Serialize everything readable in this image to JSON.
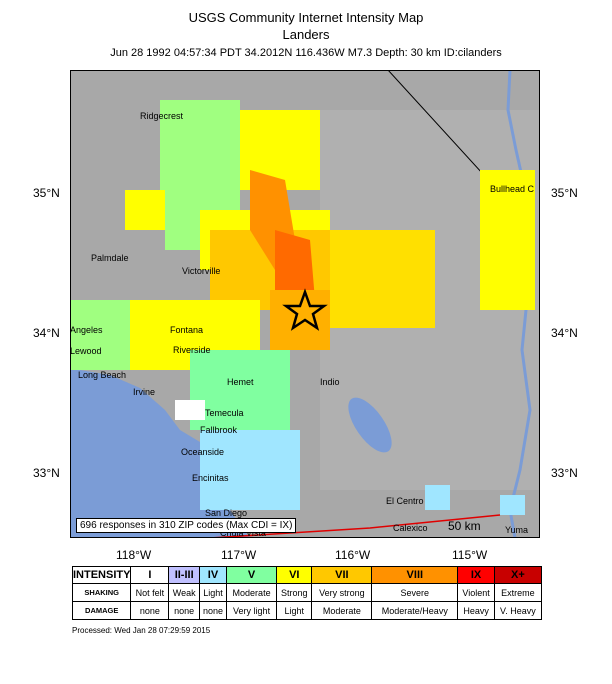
{
  "header": {
    "title": "USGS Community Internet Intensity Map",
    "event_name": "Landers",
    "event_info": "Jun 28 1992 04:57:34 PDT 34.2012N 116.436W M7.3 Depth: 30 km ID:cilanders"
  },
  "map": {
    "lat_labels": [
      "35°N",
      "34°N",
      "33°N"
    ],
    "lon_labels": [
      "118°W",
      "117°W",
      "116°W",
      "115°W"
    ],
    "cities": [
      "Ridgecrest",
      "Bullhead C",
      "Palmdale",
      "Victorville",
      "Angeles",
      "Fontana",
      "Riverside",
      "Lewood",
      "Long Beach",
      "Irvine",
      "Hemet",
      "Indio",
      "Temecula",
      "Fallbrook",
      "Oceanside",
      "Encinitas",
      "San Diego",
      "Chula Vista",
      "El Centro",
      "Calexico",
      "Yuma"
    ],
    "scale_label": "50 km",
    "responses_note": "696 responses in 310 ZIP codes (Max CDI = IX)",
    "colors": {
      "water": "#7b9cd6",
      "terrain": "#a9a9a9",
      "epicenter_star": "#000000"
    }
  },
  "legend": {
    "row_labels": [
      "INTENSITY",
      "SHAKING",
      "DAMAGE"
    ],
    "intensity": [
      "I",
      "II-III",
      "IV",
      "V",
      "VI",
      "VII",
      "VIII",
      "IX",
      "X+"
    ],
    "shaking": [
      "Not felt",
      "Weak",
      "Light",
      "Moderate",
      "Strong",
      "Very strong",
      "Severe",
      "Violent",
      "Extreme"
    ],
    "damage": [
      "none",
      "none",
      "none",
      "Very light",
      "Light",
      "Moderate",
      "Moderate/Heavy",
      "Heavy",
      "V. Heavy"
    ],
    "colors": [
      "#ffffff",
      "#c0c0ff",
      "#a0e6ff",
      "#80ffa0",
      "#ffff00",
      "#ffc800",
      "#ff9100",
      "#ff0000",
      "#c80000"
    ]
  },
  "footer": {
    "processed": "Processed: Wed Jan 28 07:29:59 2015"
  }
}
